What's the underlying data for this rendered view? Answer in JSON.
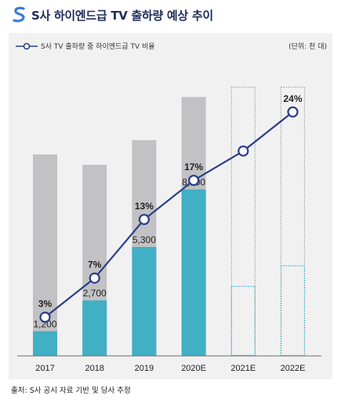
{
  "title": "S사 하이엔드급 TV 출하량 예상 추이",
  "unit": "(단위: 천 대)",
  "source": "출처: S사 공시 자료 기반 및 당사 추정",
  "colors": {
    "total_bar": "#c2c2c4",
    "highend_bar": "#41afc4",
    "line": "#2c3e8a",
    "title": "#1f2b59",
    "panel": "#f1f1f1"
  },
  "chart_data": {
    "type": "bar",
    "categories": [
      "2017",
      "2018",
      "2019",
      "2020E",
      "2021E",
      "2022E"
    ],
    "series": [
      {
        "kind": "total",
        "values": [
          9800,
          9300,
          10500,
          12600,
          13100,
          13100
        ],
        "style": [
          "solid",
          "solid",
          "solid",
          "solid",
          "dotted",
          "dotted"
        ]
      },
      {
        "kind": "highend",
        "values": [
          1200,
          2700,
          5300,
          8100,
          3400,
          4400
        ],
        "labels": [
          "1,200",
          "2,700",
          "5,300",
          "8,100",
          "",
          ""
        ],
        "style": [
          "solid",
          "solid",
          "solid",
          "solid",
          "dotted",
          "dotted"
        ]
      },
      {
        "name": "S사 TV 출하량 중 하이엔드급 TV 비율",
        "kind": "line",
        "values": [
          3,
          7,
          13,
          17,
          20,
          24
        ],
        "labels": [
          "3%",
          "7%",
          "13%",
          "17%",
          "",
          "24%"
        ]
      }
    ],
    "bar_ylim": [
      0,
      14000
    ],
    "line_ylim": [
      0,
      30
    ],
    "legend_position": "top-left",
    "grid": false
  }
}
